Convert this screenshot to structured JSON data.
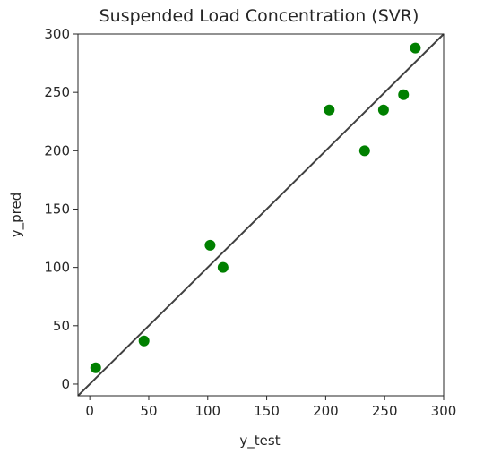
{
  "chart_data": {
    "type": "scatter",
    "title": "Suspended Load Concentration (SVR)",
    "xlabel": "y_test",
    "ylabel": "y_pred",
    "xlim": [
      -10,
      300
    ],
    "ylim": [
      -10,
      300
    ],
    "xticks": [
      0,
      50,
      100,
      150,
      200,
      250,
      300
    ],
    "yticks": [
      0,
      50,
      100,
      150,
      200,
      250,
      300
    ],
    "grid": false,
    "legend": "none",
    "points": [
      {
        "x": 5,
        "y": 14
      },
      {
        "x": 46,
        "y": 37
      },
      {
        "x": 102,
        "y": 119
      },
      {
        "x": 113,
        "y": 100
      },
      {
        "x": 203,
        "y": 235
      },
      {
        "x": 233,
        "y": 200
      },
      {
        "x": 249,
        "y": 235
      },
      {
        "x": 266,
        "y": 248
      },
      {
        "x": 276,
        "y": 288
      }
    ],
    "reference_line": {
      "x": [
        -10,
        300
      ],
      "y": [
        -10,
        300
      ]
    },
    "point_color": "#008000",
    "line_color": "#404040"
  }
}
